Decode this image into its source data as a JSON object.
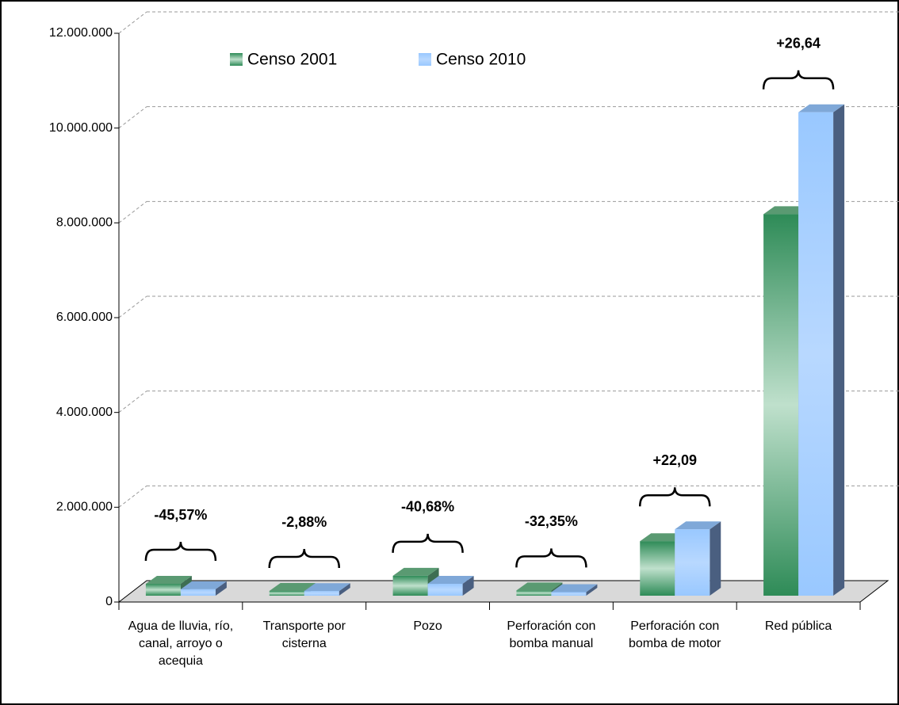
{
  "chart_data": {
    "type": "bar3d",
    "categories": [
      "Agua de lluvia, río, canal, arroyo o acequia",
      "Transporte por cisterna",
      "Pozo",
      "Perforación con bomba manual",
      "Perforación con bomba de motor",
      "Red pública"
    ],
    "series": [
      {
        "name": "Censo 2001",
        "color": "#2e8b57",
        "values": [
          250000,
          100000,
          420000,
          110000,
          1150000,
          8050000
        ]
      },
      {
        "name": "Censo 2010",
        "color": "#99c8ff",
        "values": [
          136000,
          97000,
          250000,
          75000,
          1400000,
          10200000
        ]
      }
    ],
    "annotations": [
      "-45,57%",
      "-2,88%",
      "-40,68%",
      "-32,35%",
      "+22,09",
      "+26,64"
    ],
    "ylim": [
      0,
      12000000
    ],
    "yticks": [
      0,
      {
        "value": 2000000,
        "label": "2.000.000"
      },
      {
        "value": 4000000,
        "label": "4.000.000"
      },
      {
        "value": 6000000,
        "label": "6.000.000"
      },
      {
        "value": 8000000,
        "label": "8.000.000"
      },
      {
        "value": 10000000,
        "label": "10.000.000"
      },
      {
        "value": 12000000,
        "label": "12.000.000"
      }
    ],
    "grid": true,
    "legend": "top"
  }
}
